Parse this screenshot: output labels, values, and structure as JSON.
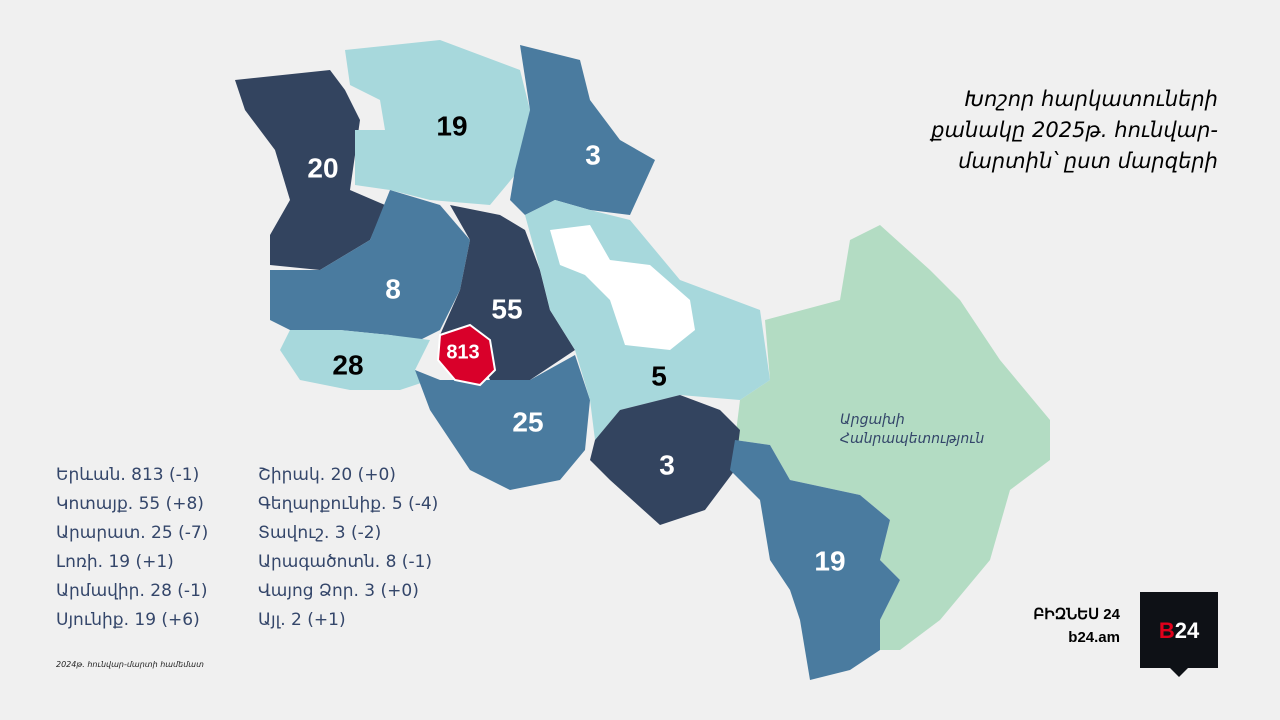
{
  "header": {
    "title_lines": [
      "Խոշոր հարկատուների",
      "քանակը 2025թ. հունվար-",
      "մարտին՝ ըստ մարզերի"
    ]
  },
  "map": {
    "labels": [
      "20",
      "19",
      "3",
      "8",
      "55",
      "813",
      "28",
      "25",
      "5",
      "3",
      "19"
    ],
    "artsakh_lines": [
      "Արցախի",
      "Հանրապետություն"
    ]
  },
  "legend": {
    "column1": [
      "Երևան. 813 (-1)",
      "Կոտայք. 55 (+8)",
      "Արարատ. 25 (-7)",
      "Լոռի. 19 (+1)",
      "Արմավիր. 28 (-1)",
      "Սյունիք. 19 (+6)"
    ],
    "column2": [
      "Շիրակ. 20 (+0)",
      "Գեղարքունիք. 5 (-4)",
      "Տավուշ. 3 (-2)",
      "Արագածոտն. 8 (-1)",
      "Վայոց Ձոր. 3 (+0)",
      "Այլ. 2 (+1)"
    ]
  },
  "footnote": "2024թ. հունվար-մարտի համեմատ",
  "brand": {
    "name": "ԲԻԶՆԵՍ 24",
    "site": "b24.am",
    "logo_b": "B",
    "logo_num": "24"
  }
}
